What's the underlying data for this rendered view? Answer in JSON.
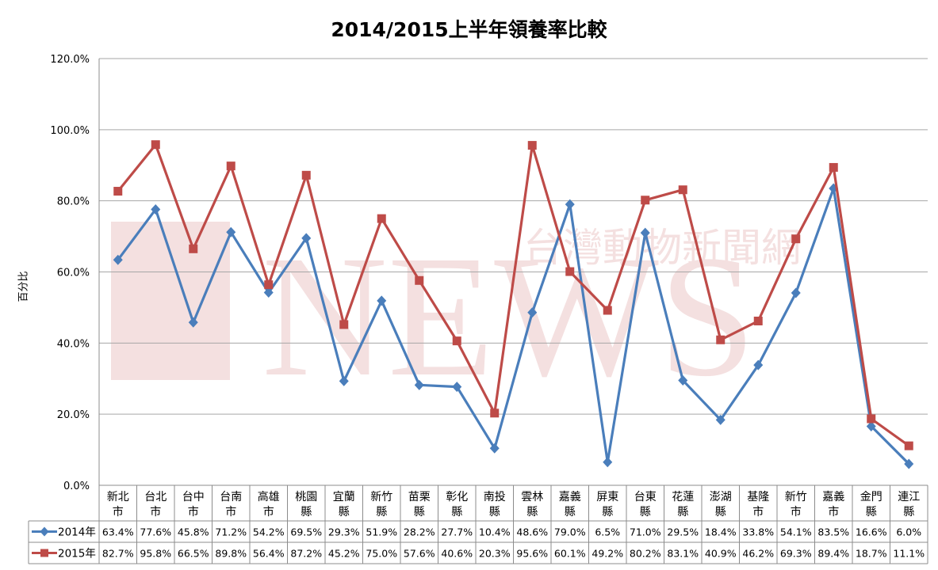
{
  "chart_data": {
    "type": "line",
    "title": "2014/2015上半年領養率比較",
    "ylabel": "百分比",
    "xlabel": "",
    "ylim": [
      0,
      120
    ],
    "yticks": [
      "0.0%",
      "20.0%",
      "40.0%",
      "60.0%",
      "80.0%",
      "100.0%",
      "120.0%"
    ],
    "grid": true,
    "legend_placement": "in data table",
    "categories": [
      [
        "新北",
        "市"
      ],
      [
        "台北",
        "市"
      ],
      [
        "台中",
        "市"
      ],
      [
        "台南",
        "市"
      ],
      [
        "高雄",
        "市"
      ],
      [
        "桃園",
        "縣"
      ],
      [
        "宜蘭",
        "縣"
      ],
      [
        "新竹",
        "縣"
      ],
      [
        "苗栗",
        "縣"
      ],
      [
        "彰化",
        "縣"
      ],
      [
        "南投",
        "縣"
      ],
      [
        "雲林",
        "縣"
      ],
      [
        "嘉義",
        "縣"
      ],
      [
        "屏東",
        "縣"
      ],
      [
        "台東",
        "縣"
      ],
      [
        "花蓮",
        "縣"
      ],
      [
        "澎湖",
        "縣"
      ],
      [
        "基隆",
        "市"
      ],
      [
        "新竹",
        "市"
      ],
      [
        "嘉義",
        "市"
      ],
      [
        "金門",
        "縣"
      ],
      [
        "連江",
        "縣"
      ]
    ],
    "series": [
      {
        "name": "2014年",
        "color": "#4a7ebb",
        "marker": "diamond",
        "values": [
          63.4,
          77.6,
          45.8,
          71.2,
          54.2,
          69.5,
          29.3,
          51.9,
          28.2,
          27.7,
          10.4,
          48.6,
          79.0,
          6.5,
          71.0,
          29.5,
          18.4,
          33.8,
          54.1,
          83.5,
          16.6,
          6.0
        ],
        "labels": [
          "63.4%",
          "77.6%",
          "45.8%",
          "71.2%",
          "54.2%",
          "69.5%",
          "29.3%",
          "51.9%",
          "28.2%",
          "27.7%",
          "10.4%",
          "48.6%",
          "79.0%",
          "6.5%",
          "71.0%",
          "29.5%",
          "18.4%",
          "33.8%",
          "54.1%",
          "83.5%",
          "16.6%",
          "6.0%"
        ]
      },
      {
        "name": "2015年",
        "color": "#be4b48",
        "marker": "square",
        "values": [
          82.7,
          95.8,
          66.5,
          89.8,
          56.4,
          87.2,
          45.2,
          75.0,
          57.6,
          40.6,
          20.3,
          95.6,
          60.1,
          49.2,
          80.2,
          83.1,
          40.9,
          46.2,
          69.3,
          89.4,
          18.7,
          11.1
        ],
        "labels": [
          "82.7%",
          "95.8%",
          "66.5%",
          "89.8%",
          "56.4%",
          "87.2%",
          "45.2%",
          "75.0%",
          "57.6%",
          "40.6%",
          "20.3%",
          "95.6%",
          "60.1%",
          "49.2%",
          "80.2%",
          "83.1%",
          "40.9%",
          "46.2%",
          "69.3%",
          "89.4%",
          "18.7%",
          "11.1%"
        ]
      }
    ]
  },
  "watermark": {
    "brand": "NEWS",
    "chinese": "台灣動物新聞網",
    "color": "#f1d6d6"
  }
}
